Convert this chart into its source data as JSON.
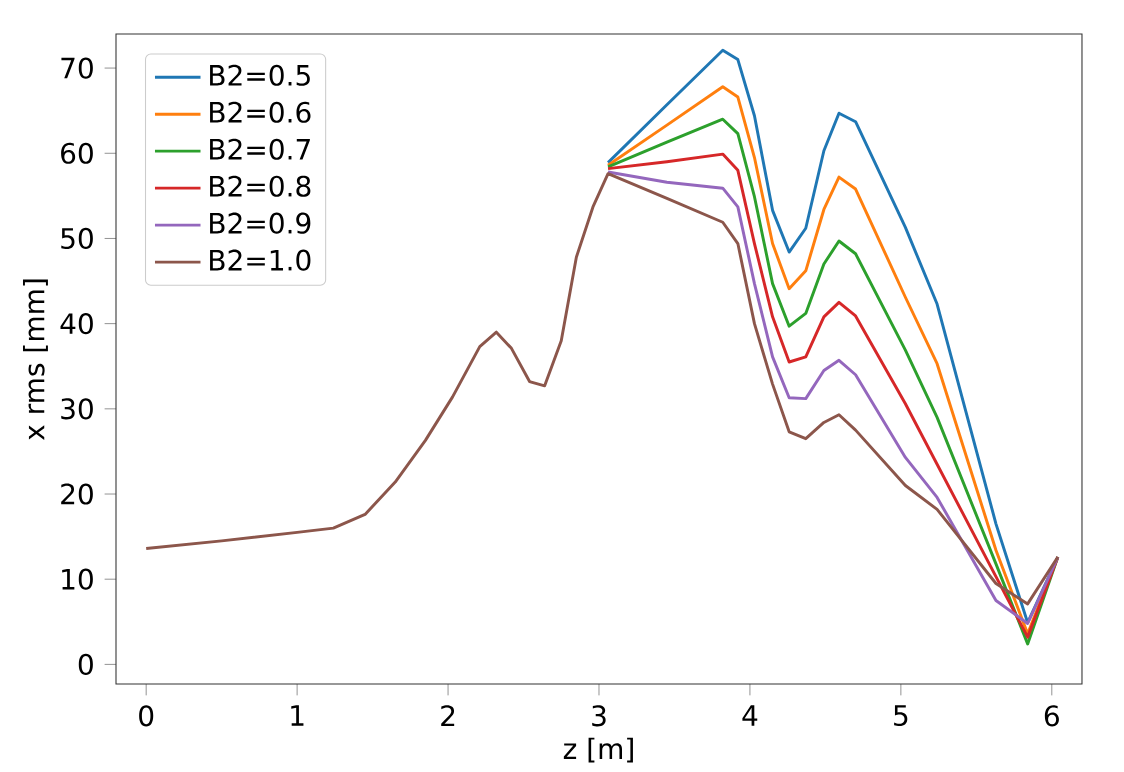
{
  "chart_data": {
    "type": "line",
    "xlabel": "z [m]",
    "ylabel": "x rms [mm]",
    "x": [
      0,
      0.5,
      1.0,
      1.24,
      1.45,
      1.65,
      1.85,
      2.03,
      2.21,
      2.32,
      2.42,
      2.54,
      2.64,
      2.75,
      2.85,
      2.96,
      3.06,
      3.45,
      3.82,
      3.92,
      4.03,
      4.15,
      4.26,
      4.37,
      4.49,
      4.59,
      4.7,
      5.03,
      5.24,
      5.63,
      5.84,
      6.04
    ],
    "series": [
      {
        "name": "B2=0.5",
        "color": "#1f77b4",
        "values": [
          null,
          null,
          null,
          null,
          null,
          null,
          null,
          null,
          null,
          null,
          null,
          null,
          null,
          null,
          null,
          null,
          58.9,
          65.7,
          72.1,
          71.0,
          64.4,
          53.3,
          48.4,
          51.2,
          60.3,
          64.7,
          63.7,
          51.3,
          42.3,
          16.5,
          4.9,
          12.6
        ]
      },
      {
        "name": "B2=0.6",
        "color": "#ff7f0e",
        "values": [
          null,
          null,
          null,
          null,
          null,
          null,
          null,
          null,
          null,
          null,
          null,
          null,
          null,
          null,
          null,
          null,
          58.6,
          63.3,
          67.8,
          66.6,
          59.5,
          49.4,
          44.1,
          46.2,
          53.4,
          57.2,
          55.8,
          43.1,
          35.3,
          13.4,
          3.6,
          12.6
        ]
      },
      {
        "name": "B2=0.7",
        "color": "#2ca02c",
        "values": [
          null,
          null,
          null,
          null,
          null,
          null,
          null,
          null,
          null,
          null,
          null,
          null,
          null,
          null,
          null,
          null,
          58.4,
          61.3,
          64.0,
          62.3,
          54.9,
          44.7,
          39.7,
          41.2,
          47.0,
          49.7,
          48.2,
          36.9,
          29.0,
          11.8,
          2.4,
          12.6
        ]
      },
      {
        "name": "B2=0.8",
        "color": "#d62728",
        "values": [
          null,
          null,
          null,
          null,
          null,
          null,
          null,
          null,
          null,
          null,
          null,
          null,
          null,
          null,
          null,
          null,
          58.2,
          59.0,
          59.9,
          58.0,
          49.4,
          40.8,
          35.5,
          36.1,
          40.8,
          42.5,
          40.9,
          30.6,
          23.5,
          10.3,
          3.2,
          12.6
        ]
      },
      {
        "name": "B2=0.9",
        "color": "#9467bd",
        "values": [
          null,
          null,
          null,
          null,
          null,
          null,
          null,
          null,
          null,
          null,
          null,
          null,
          null,
          null,
          null,
          null,
          57.8,
          56.6,
          55.9,
          53.7,
          44.7,
          36.1,
          31.3,
          31.2,
          34.5,
          35.7,
          34.0,
          24.3,
          19.6,
          7.5,
          4.8,
          12.6
        ]
      },
      {
        "name": "B2=1.0",
        "color": "#8c564b",
        "values": [
          13.6,
          14.5,
          15.5,
          16.0,
          17.6,
          21.4,
          26.3,
          31.4,
          37.3,
          39.0,
          37.1,
          33.2,
          32.7,
          38.0,
          47.8,
          53.7,
          57.6,
          54.7,
          51.9,
          49.4,
          40.0,
          32.9,
          27.3,
          26.5,
          28.4,
          29.3,
          27.5,
          21.0,
          18.2,
          9.5,
          7.1,
          12.6
        ]
      }
    ],
    "xlim": [
      -0.2,
      6.2
    ],
    "ylim": [
      -2.3,
      74
    ],
    "xticks": [
      0,
      1,
      2,
      3,
      4,
      5,
      6
    ],
    "yticks": [
      0,
      10,
      20,
      30,
      40,
      50,
      60,
      70
    ],
    "legend": "top left",
    "grid": false,
    "marker": "none",
    "line_style": "solid"
  }
}
